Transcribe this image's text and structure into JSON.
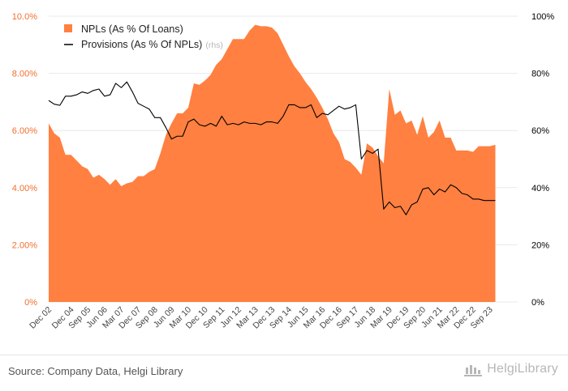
{
  "colors": {
    "npl_fill": "#ff8040",
    "provisions_line": "#000000",
    "axis_left_text": "#f26f2d",
    "axis_right_text": "#000000",
    "axis_bottom_text": "#444444",
    "gridline": "#e8e8e8",
    "source_text": "#555555",
    "logo": "#b7b7b7"
  },
  "legend": {
    "npl": "NPLs (As % Of Loans)",
    "provisions": "Provisions (As % Of NPLs)",
    "provisions_suffix": "(rhs)"
  },
  "footer": {
    "source": "Source: Company Data, Helgi Library",
    "logo_text": "HelgiLibrary"
  },
  "chart_data": {
    "type": "area+line",
    "title": "",
    "x_range": [
      0,
      84
    ],
    "x_ticks": [
      {
        "i": 0,
        "label": "Dec 02"
      },
      {
        "i": 4,
        "label": "Dec 04"
      },
      {
        "i": 7,
        "label": "Sep 05"
      },
      {
        "i": 10,
        "label": "Jun 06"
      },
      {
        "i": 13,
        "label": "Mar 07"
      },
      {
        "i": 16,
        "label": "Dec 07"
      },
      {
        "i": 19,
        "label": "Sep 08"
      },
      {
        "i": 22,
        "label": "Jun 09"
      },
      {
        "i": 25,
        "label": "Mar 10"
      },
      {
        "i": 28,
        "label": "Dec 10"
      },
      {
        "i": 31,
        "label": "Sep 11"
      },
      {
        "i": 34,
        "label": "Jun 12"
      },
      {
        "i": 37,
        "label": "Mar 13"
      },
      {
        "i": 40,
        "label": "Dec 13"
      },
      {
        "i": 43,
        "label": "Sep 14"
      },
      {
        "i": 46,
        "label": "Jun 15"
      },
      {
        "i": 49,
        "label": "Mar 16"
      },
      {
        "i": 52,
        "label": "Dec 16"
      },
      {
        "i": 55,
        "label": "Sep 17"
      },
      {
        "i": 58,
        "label": "Jun 18"
      },
      {
        "i": 61,
        "label": "Mar 19"
      },
      {
        "i": 64,
        "label": "Dec 19"
      },
      {
        "i": 67,
        "label": "Sep 20"
      },
      {
        "i": 70,
        "label": "Jun 21"
      },
      {
        "i": 73,
        "label": "Mar 22"
      },
      {
        "i": 76,
        "label": "Dec 22"
      },
      {
        "i": 79,
        "label": "Sep 23"
      }
    ],
    "y_left": {
      "range": [
        0,
        10
      ],
      "ticks": [
        0,
        2,
        4,
        6,
        8,
        10
      ],
      "labels": [
        "0%",
        "2.00%",
        "4.00%",
        "6.00%",
        "8.00%",
        "10.0%"
      ]
    },
    "y_right": {
      "range": [
        0,
        100
      ],
      "ticks": [
        0,
        20,
        40,
        60,
        80,
        100
      ],
      "labels": [
        "0%",
        "20%",
        "40%",
        "60%",
        "80%",
        "100%"
      ]
    },
    "series": [
      {
        "name": "NPLs (As % Of Loans)",
        "axis": "left",
        "kind": "area",
        "values": [
          6.25,
          5.9,
          5.75,
          5.15,
          5.15,
          4.95,
          4.75,
          4.65,
          4.35,
          4.45,
          4.3,
          4.1,
          4.3,
          4.05,
          4.15,
          4.2,
          4.4,
          4.4,
          4.55,
          4.65,
          5.2,
          5.85,
          6.25,
          6.6,
          6.6,
          6.8,
          7.65,
          7.6,
          7.75,
          7.95,
          8.3,
          8.5,
          8.85,
          9.2,
          9.2,
          9.2,
          9.5,
          9.7,
          9.65,
          9.65,
          9.6,
          9.4,
          9.0,
          8.6,
          8.25,
          8.0,
          7.7,
          7.45,
          7.15,
          6.8,
          6.4,
          5.9,
          5.6,
          5.0,
          4.9,
          4.7,
          4.45,
          5.55,
          5.4,
          5.1,
          4.85,
          7.45,
          6.55,
          6.7,
          6.25,
          6.35,
          5.85,
          6.5,
          5.75,
          5.95,
          6.35,
          5.75,
          5.75,
          5.3,
          5.3,
          5.3,
          5.25,
          5.45,
          5.45,
          5.45,
          5.5
        ]
      },
      {
        "name": "Provisions (As % Of NPLs)",
        "axis": "right",
        "kind": "line",
        "values": [
          70.5,
          69.2,
          68.8,
          72.0,
          72.0,
          72.5,
          73.5,
          73.0,
          74.0,
          74.5,
          72.0,
          72.5,
          76.5,
          75.0,
          77.0,
          73.5,
          69.5,
          68.5,
          67.5,
          64.5,
          64.5,
          61.0,
          57.0,
          58.0,
          58.0,
          63.0,
          64.0,
          62.0,
          61.5,
          62.5,
          61.5,
          65.0,
          62.0,
          62.5,
          62.0,
          63.0,
          62.5,
          62.5,
          62.0,
          63.0,
          63.0,
          62.5,
          65.0,
          69.0,
          69.0,
          68.0,
          68.0,
          69.0,
          64.5,
          66.0,
          65.5,
          67.0,
          68.5,
          67.5,
          68.0,
          69.0,
          50.0,
          53.0,
          52.0,
          53.5,
          32.5,
          35.0,
          33.0,
          33.5,
          30.5,
          34.0,
          35.0,
          39.5,
          40.0,
          37.5,
          39.5,
          38.5,
          41.0,
          40.0,
          38.0,
          37.5,
          36.0,
          36.0,
          35.5,
          35.5,
          35.5
        ]
      }
    ]
  }
}
